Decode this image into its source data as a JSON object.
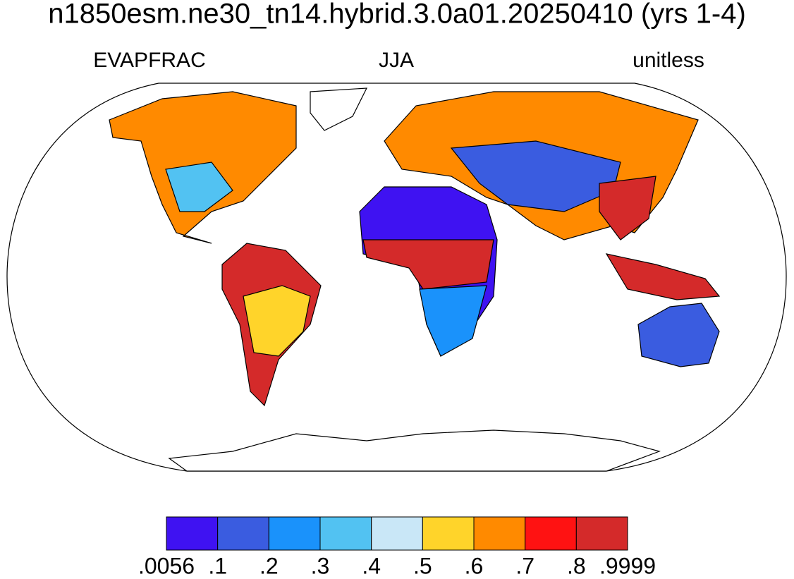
{
  "header": {
    "title": "n1850esm.ne30_tn14.hybrid.3.0a01.20250410 (yrs 1-4)",
    "left": "EVAPFRAC",
    "center": "JJA",
    "right": "unitless"
  },
  "colorbar": {
    "colors": [
      "#3f12f2",
      "#3a5ce0",
      "#1a92fb",
      "#52c2f2",
      "#c9e7f7",
      "#ffd42a",
      "#ff8a00",
      "#ff1212",
      "#d42a2a"
    ],
    "ticks": [
      {
        "value": 0.0056,
        "label": ".0056"
      },
      {
        "value": 0.1,
        "label": ".1"
      },
      {
        "value": 0.2,
        "label": ".2"
      },
      {
        "value": 0.3,
        "label": ".3"
      },
      {
        "value": 0.4,
        "label": ".4"
      },
      {
        "value": 0.5,
        "label": ".5"
      },
      {
        "value": 0.6,
        "label": ".6"
      },
      {
        "value": 0.7,
        "label": ".7"
      },
      {
        "value": 0.8,
        "label": ".8"
      },
      {
        "value": 0.9999,
        "label": ".9999"
      }
    ]
  }
}
